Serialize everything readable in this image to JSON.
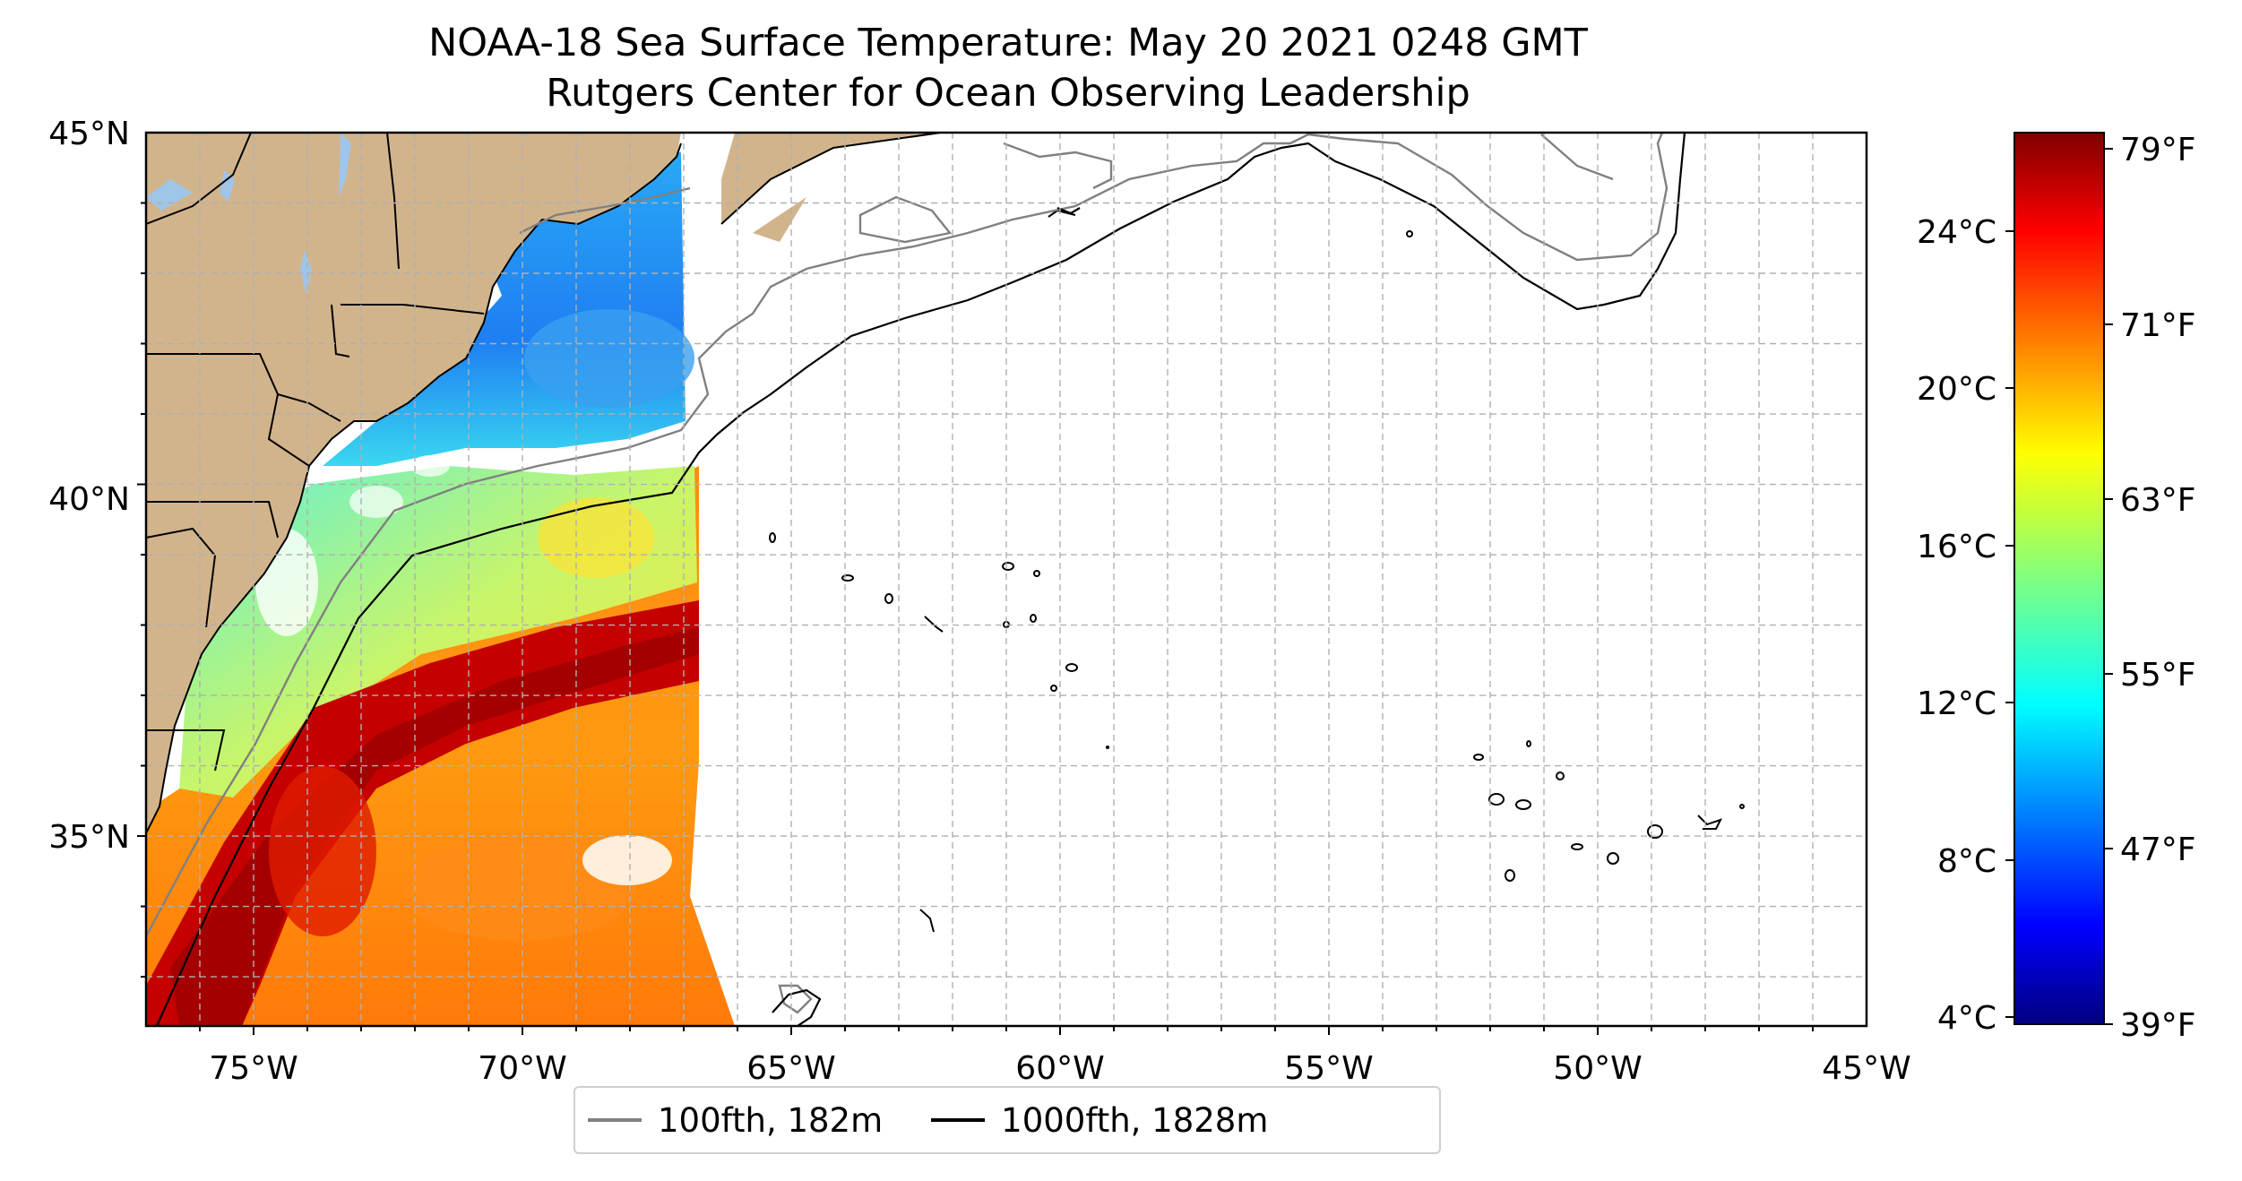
{
  "title": "NOAA-18 Sea Surface Temperature: May 20 2021 0248 GMT",
  "subtitle": "Rutgers Center for Ocean Observing Leadership",
  "map": {
    "lon_range": [
      -77,
      -45
    ],
    "lat_range": [
      32.3,
      45
    ],
    "lat_ticks": [
      "45°N",
      "40°N",
      "35°N"
    ],
    "lon_ticks": [
      "75°W",
      "70°W",
      "65°W",
      "60°W",
      "55°W",
      "50°W",
      "45°W"
    ],
    "grid": true,
    "colors": {
      "land": "#d2b48c",
      "lakes": "#9fc5e8",
      "grid": "#b0b0b0"
    }
  },
  "colorbar": {
    "colormap": "jet",
    "celsius_ticks": [
      "24°C",
      "20°C",
      "16°C",
      "12°C",
      "8°C",
      "4°C"
    ],
    "fahrenheit_ticks": [
      "79°F",
      "71°F",
      "63°F",
      "55°F",
      "47°F",
      "39°F"
    ]
  },
  "legend": {
    "items": [
      {
        "label": "100fth, 182m",
        "color": "#808080"
      },
      {
        "label": "1000fth, 1828m",
        "color": "#000000"
      }
    ]
  }
}
